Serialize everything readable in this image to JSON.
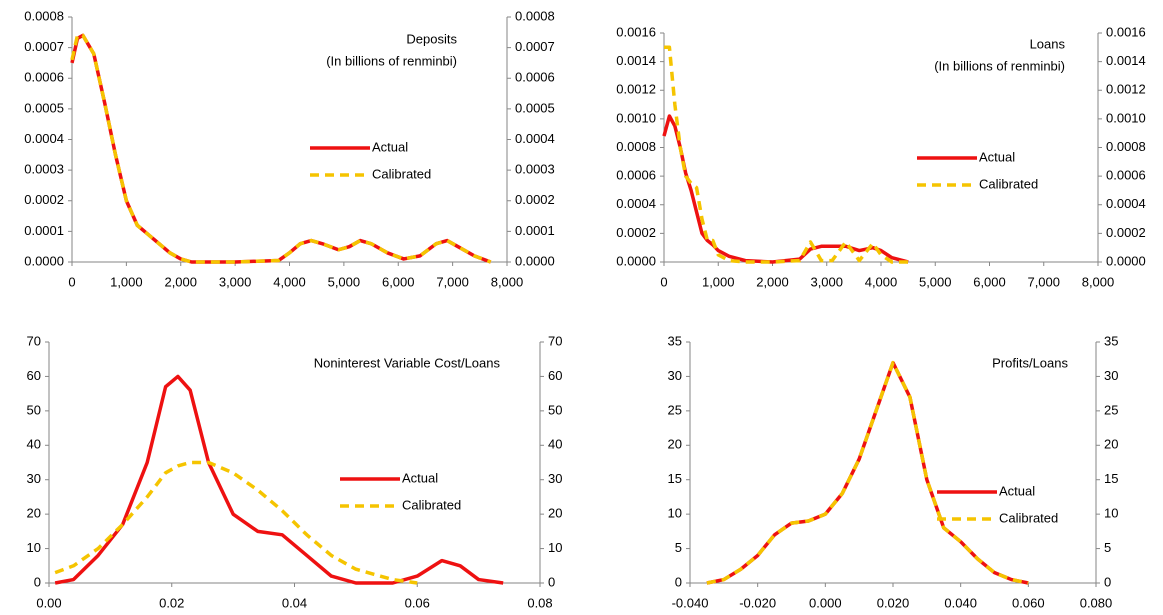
{
  "chart_data": [
    {
      "type": "line",
      "title": "Deposits",
      "subtitle": "(In billions of renminbi)",
      "x": [
        0,
        100,
        200,
        400,
        600,
        800,
        1000,
        1200,
        1400,
        1600,
        1800,
        2000,
        2200,
        3000,
        3800,
        4000,
        4200,
        4400,
        4600,
        4900,
        5100,
        5300,
        5500,
        5800,
        6100,
        6400,
        6700,
        6900,
        7100,
        7400,
        7700
      ],
      "series": [
        {
          "name": "Actual",
          "color": "#ee1111",
          "style": "solid",
          "values": [
            0.00065,
            0.00073,
            0.00074,
            0.00068,
            0.00052,
            0.00035,
            0.0002,
            0.00012,
            9e-05,
            6e-05,
            3e-05,
            1e-05,
            0,
            0,
            5e-06,
            3e-05,
            6e-05,
            7e-05,
            6e-05,
            4e-05,
            5e-05,
            7e-05,
            6e-05,
            3e-05,
            1e-05,
            2e-05,
            6e-05,
            7e-05,
            5e-05,
            2e-05,
            0
          ]
        },
        {
          "name": "Calibrated",
          "color": "#f5c400",
          "style": "dashed",
          "values": [
            0.00066,
            0.00074,
            0.00074,
            0.00068,
            0.00052,
            0.00035,
            0.0002,
            0.00012,
            9e-05,
            6e-05,
            3e-05,
            1e-05,
            0,
            0,
            5e-06,
            3e-05,
            6e-05,
            7e-05,
            6e-05,
            4e-05,
            5e-05,
            7e-05,
            6e-05,
            3e-05,
            1e-05,
            2e-05,
            6e-05,
            7e-05,
            5e-05,
            2e-05,
            0
          ]
        }
      ],
      "xlim": [
        0,
        8000
      ],
      "xticks": [
        0,
        {
          "value": 1000,
          "label": "1,000"
        },
        {
          "value": 2000,
          "label": "2,000"
        },
        {
          "value": 3000,
          "label": "3,000"
        },
        {
          "value": 4000,
          "label": "4,000"
        },
        {
          "value": 5000,
          "label": "5,000"
        },
        {
          "value": 6000,
          "label": "6,000"
        },
        {
          "value": 7000,
          "label": "7,000"
        },
        {
          "value": 8000,
          "label": "8,000"
        }
      ],
      "ylim": [
        0,
        0.0008
      ],
      "yticks": [
        {
          "value": 0,
          "label": "0.0000"
        },
        0.0001,
        0.0002,
        0.0003,
        0.0004,
        0.0005,
        0.0006,
        0.0007,
        0.0008
      ],
      "y2lim": [
        0,
        0.0008
      ],
      "y2ticks": [
        {
          "value": 0,
          "label": "0.0000"
        },
        0.0001,
        0.0002,
        0.0003,
        0.0004,
        0.0005,
        0.0006,
        0.0007,
        0.0008
      ],
      "legend": "right"
    },
    {
      "type": "line",
      "title": "Loans",
      "subtitle": "(In billions of renminbi)",
      "x": [
        0,
        100,
        200,
        300,
        400,
        500,
        600,
        700,
        800,
        900,
        1000,
        1200,
        1500,
        2000,
        2500,
        2700,
        2900,
        3100,
        3350,
        3600,
        3850,
        4000,
        4200,
        4500
      ],
      "series": [
        {
          "name": "Actual",
          "color": "#ee1111",
          "style": "solid",
          "values": [
            0.00088,
            0.00102,
            0.00095,
            0.0008,
            0.00062,
            0.0005,
            0.00035,
            0.0002,
            0.00015,
            0.00012,
            8e-05,
            4e-05,
            1e-05,
            0,
            2e-05,
            9e-05,
            0.00011,
            0.00011,
            0.00011,
            8e-05,
            0.0001,
            8e-05,
            3e-05,
            0
          ]
        },
        {
          "name": "Calibrated",
          "color": "#f5c400",
          "style": "dashed",
          "values": [
            0.0015,
            0.0015,
            0.0011,
            0.0008,
            0.0006,
            0.00055,
            0.00052,
            0.0003,
            0.00015,
            0.00015,
            5e-05,
            1e-05,
            0,
            0,
            1e-05,
            0.00014,
            1e-05,
            1e-05,
            0.00014,
            1e-05,
            0.00013,
            5e-05,
            0,
            0
          ]
        }
      ],
      "xlim": [
        0,
        8000
      ],
      "xticks": [
        0,
        {
          "value": 1000,
          "label": "1,000"
        },
        {
          "value": 2000,
          "label": "2,000"
        },
        {
          "value": 3000,
          "label": "3,000"
        },
        {
          "value": 4000,
          "label": "4,000"
        },
        {
          "value": 5000,
          "label": "5,000"
        },
        {
          "value": 6000,
          "label": "6,000"
        },
        {
          "value": 7000,
          "label": "7,000"
        },
        {
          "value": 8000,
          "label": "8,000"
        }
      ],
      "ylim": [
        0,
        0.0016
      ],
      "yticks": [
        {
          "value": 0,
          "label": "0.0000"
        },
        0.0002,
        0.0004,
        0.0006,
        0.0008,
        {
          "value": 0.001,
          "label": "0.0010"
        },
        0.0012,
        0.0014,
        0.0016
      ],
      "y2lim": [
        0,
        0.0016
      ],
      "y2ticks": [
        {
          "value": 0,
          "label": "0.0000"
        },
        0.0002,
        0.0004,
        0.0006,
        0.0008,
        {
          "value": 0.001,
          "label": "0.0010"
        },
        0.0012,
        0.0014,
        0.0016
      ],
      "legend": "right"
    },
    {
      "type": "line",
      "title": "Noninterest Variable Cost/Loans",
      "x": [
        0.001,
        0.004,
        0.008,
        0.012,
        0.016,
        0.019,
        0.021,
        0.023,
        0.026,
        0.03,
        0.034,
        0.038,
        0.042,
        0.046,
        0.05,
        0.056,
        0.06,
        0.064,
        0.067,
        0.07,
        0.074
      ],
      "series": [
        {
          "name": "Actual",
          "color": "#ee1111",
          "style": "solid",
          "values": [
            0,
            1,
            8,
            17,
            35,
            57,
            60,
            56,
            35,
            20,
            15,
            14,
            8,
            2,
            0,
            0,
            2,
            6.5,
            5,
            1,
            0
          ]
        },
        {
          "name": "Calibrated",
          "color": "#f5c400",
          "style": "dashed",
          "values": [
            3,
            5,
            10,
            17,
            25,
            32,
            34,
            35,
            35,
            32,
            27,
            21,
            14,
            8,
            4,
            1,
            0,
            null,
            null,
            null,
            null
          ]
        }
      ],
      "xlim": [
        0,
        0.08
      ],
      "xticks": [
        {
          "value": 0,
          "label": "0.00"
        },
        0.02,
        0.04,
        0.06,
        0.08
      ],
      "ylim": [
        0,
        70
      ],
      "yticks": [
        0,
        10,
        20,
        30,
        40,
        50,
        60,
        70
      ],
      "y2lim": [
        0,
        70
      ],
      "y2ticks": [
        0,
        10,
        20,
        30,
        40,
        50,
        60,
        70
      ],
      "legend": "right"
    },
    {
      "type": "line",
      "title": "Profits/Loans",
      "x": [
        -0.035,
        -0.03,
        -0.025,
        -0.02,
        -0.015,
        -0.01,
        -0.005,
        0,
        0.005,
        0.01,
        0.015,
        0.02,
        0.025,
        0.03,
        0.035,
        0.04,
        0.045,
        0.05,
        0.055,
        0.06
      ],
      "series": [
        {
          "name": "Actual",
          "color": "#ee1111",
          "style": "solid",
          "values": [
            0,
            0.5,
            2,
            4,
            7,
            8.7,
            9,
            10,
            13,
            18,
            25,
            32,
            27,
            15,
            8,
            6,
            3.5,
            1.5,
            0.5,
            0
          ]
        },
        {
          "name": "Calibrated",
          "color": "#f5c400",
          "style": "dashed",
          "values": [
            0,
            0.5,
            2,
            4,
            7,
            8.7,
            9,
            10,
            13,
            18,
            25,
            32,
            27,
            15,
            8,
            6,
            3.5,
            1.5,
            0.5,
            0
          ]
        }
      ],
      "xlim": [
        -0.04,
        0.08
      ],
      "xticks": [
        {
          "value": -0.04,
          "label": "-0.040"
        },
        {
          "value": -0.02,
          "label": "-0.020"
        },
        {
          "value": 0,
          "label": "0.000"
        },
        {
          "value": 0.02,
          "label": "0.020"
        },
        {
          "value": 0.04,
          "label": "0.040"
        },
        {
          "value": 0.06,
          "label": "0.060"
        },
        {
          "value": 0.08,
          "label": "0.080"
        }
      ],
      "ylim": [
        0,
        35
      ],
      "yticks": [
        0,
        5,
        10,
        15,
        20,
        25,
        30,
        35
      ],
      "y2lim": [
        0,
        35
      ],
      "y2ticks": [
        0,
        5,
        10,
        15,
        20,
        25,
        30,
        35
      ],
      "legend": "right"
    }
  ]
}
